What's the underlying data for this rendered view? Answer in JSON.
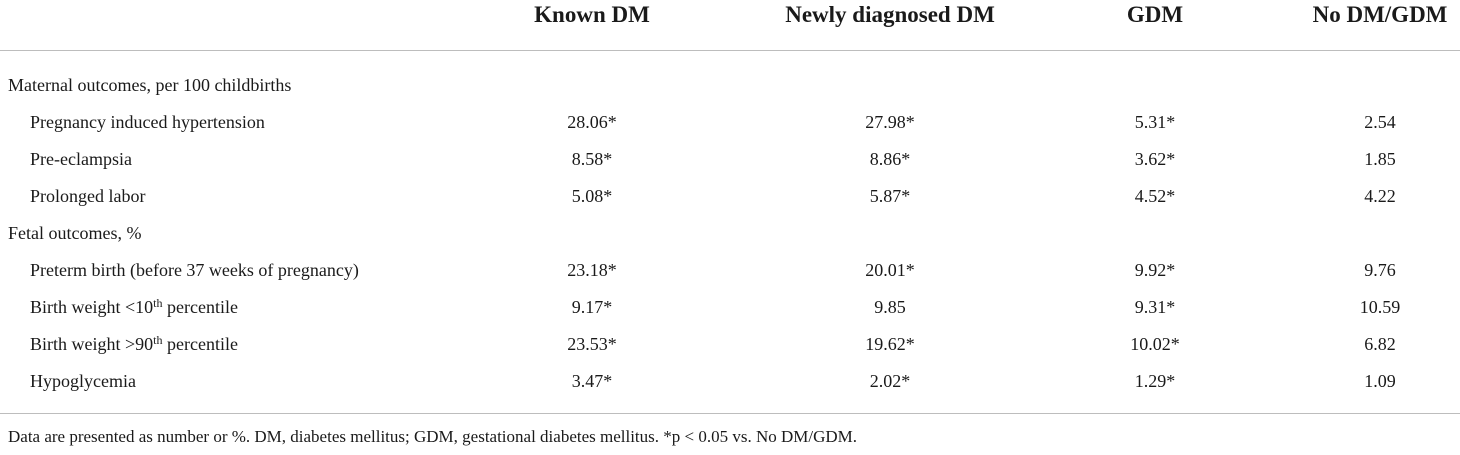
{
  "table": {
    "columns": [
      "Known DM",
      "Newly diagnosed DM",
      "GDM",
      "No DM/GDM"
    ],
    "sections": [
      {
        "label": "Maternal outcomes, per 100 childbirths",
        "rows": [
          {
            "label": "Pregnancy induced hypertension",
            "sup": "",
            "label_after": "",
            "values": [
              "28.06*",
              "27.98*",
              "5.31*",
              "2.54"
            ]
          },
          {
            "label": "Pre-eclampsia",
            "sup": "",
            "label_after": "",
            "values": [
              "8.58*",
              "8.86*",
              "3.62*",
              "1.85"
            ]
          },
          {
            "label": "Prolonged labor",
            "sup": "",
            "label_after": "",
            "values": [
              "5.08*",
              "5.87*",
              "4.52*",
              "4.22"
            ]
          }
        ]
      },
      {
        "label": "Fetal outcomes, %",
        "rows": [
          {
            "label": "Preterm birth (before 37 weeks of pregnancy)",
            "sup": "",
            "label_after": "",
            "values": [
              "23.18*",
              "20.01*",
              "9.92*",
              "9.76"
            ]
          },
          {
            "label": "Birth weight <10",
            "sup": "th",
            "label_after": " percentile",
            "values": [
              "9.17*",
              "9.85",
              "9.31*",
              "10.59"
            ]
          },
          {
            "label": "Birth weight >90",
            "sup": "th",
            "label_after": " percentile",
            "values": [
              "23.53*",
              "19.62*",
              "10.02*",
              "6.82"
            ]
          },
          {
            "label": "Hypoglycemia",
            "sup": "",
            "label_after": "",
            "values": [
              "3.47*",
              "2.02*",
              "1.29*",
              "1.09"
            ]
          }
        ]
      }
    ],
    "footnote": "Data are presented as number or %. DM, diabetes mellitus; GDM, gestational diabetes mellitus. *p < 0.05 vs. No DM/GDM."
  }
}
